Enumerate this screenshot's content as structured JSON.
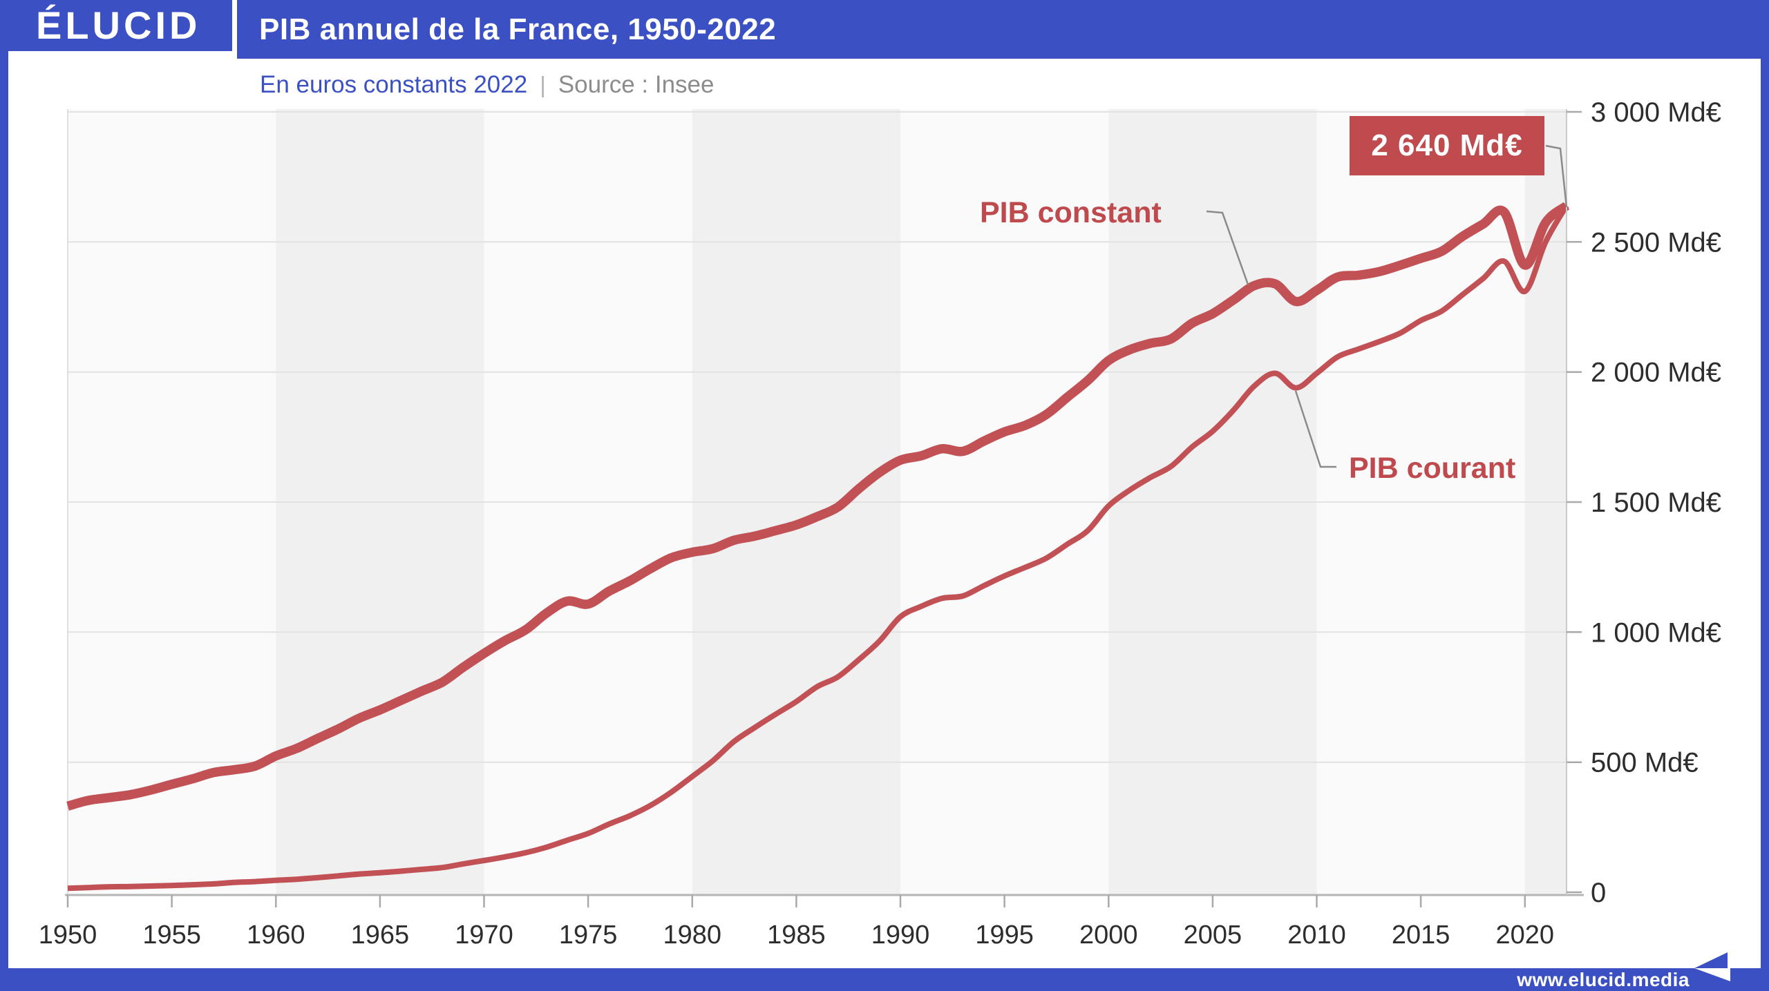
{
  "header": {
    "logo": "ÉLUCID",
    "title": "PIB annuel de la France, 1950-2022"
  },
  "subtitle": {
    "unit": "En euros constants 2022",
    "separator": "|",
    "source": "Source : Insee"
  },
  "footer": {
    "url": "www.elucid.media"
  },
  "colors": {
    "accent_blue": "#3b50c2",
    "line_red": "#c25156",
    "box_red": "#bf4b4f",
    "label_red": "#bf4a4e",
    "band_light": "#fafafa",
    "band_dark": "#f0f0f0",
    "grid": "#e2e2e2",
    "axis_bottom": "#b5b5b5",
    "axis_side": "#c9c9c9",
    "tick": "#a9a9a9",
    "tick_text": "#2d2d2d",
    "connector": "#8a8a8a"
  },
  "chart_data": {
    "type": "line",
    "title": "PIB annuel de la France, 1950-2022",
    "subtitle": "En euros constants 2022",
    "source": "Source : Insee",
    "x_start": 1950,
    "x_end": 2022,
    "ylim": [
      0,
      3000
    ],
    "ytick_step": 500,
    "grid": "horizontal",
    "legend_position": "inline-labels",
    "xticks": [
      1950,
      1955,
      1960,
      1965,
      1970,
      1975,
      1980,
      1985,
      1990,
      1995,
      2000,
      2005,
      2010,
      2015,
      2020
    ],
    "yticks": [
      {
        "value": 0,
        "label": "0"
      },
      {
        "value": 500,
        "label": "500 Md€"
      },
      {
        "value": 1000,
        "label": "1 000 Md€"
      },
      {
        "value": 1500,
        "label": "1 500 Md€"
      },
      {
        "value": 2000,
        "label": "2 000 Md€"
      },
      {
        "value": 2500,
        "label": "2 500 Md€"
      },
      {
        "value": 3000,
        "label": "3 000 Md€"
      }
    ],
    "series": [
      {
        "name": "PIB constant",
        "style": "thick",
        "values": [
          331,
          353,
          364,
          375,
          393,
          415,
          436,
          460,
          471,
          485,
          524,
          553,
          591,
          628,
          669,
          701,
          737,
          773,
          808,
          865,
          918,
          967,
          1009,
          1073,
          1119,
          1108,
          1157,
          1197,
          1244,
          1286,
          1307,
          1321,
          1353,
          1369,
          1390,
          1412,
          1444,
          1481,
          1551,
          1614,
          1661,
          1678,
          1705,
          1695,
          1734,
          1770,
          1795,
          1836,
          1902,
          1967,
          2044,
          2085,
          2110,
          2127,
          2187,
          2224,
          2277,
          2332,
          2339,
          2271,
          2314,
          2365,
          2372,
          2386,
          2410,
          2437,
          2464,
          2521,
          2569,
          2615,
          2411,
          2575,
          2639
        ]
      },
      {
        "name": "PIB courant",
        "style": "thin",
        "values": [
          15,
          18,
          21,
          22,
          24,
          26,
          29,
          32,
          38,
          41,
          46,
          50,
          56,
          63,
          70,
          75,
          81,
          88,
          95,
          109,
          122,
          136,
          152,
          173,
          200,
          226,
          262,
          294,
          334,
          385,
          445,
          506,
          579,
          633,
          684,
          733,
          790,
          828,
          894,
          966,
          1059,
          1099,
          1130,
          1139,
          1178,
          1216,
          1249,
          1284,
          1337,
          1390,
          1485,
          1545,
          1594,
          1637,
          1711,
          1772,
          1853,
          1946,
          1995,
          1939,
          1995,
          2058,
          2088,
          2117,
          2149,
          2198,
          2234,
          2297,
          2360,
          2426,
          2310,
          2501,
          2639
        ]
      }
    ],
    "annotations": {
      "constant_label": "PIB constant",
      "courant_label": "PIB courant",
      "end_value_label": "2 640 Md€",
      "end_value": 2640,
      "end_year": 2022
    }
  }
}
